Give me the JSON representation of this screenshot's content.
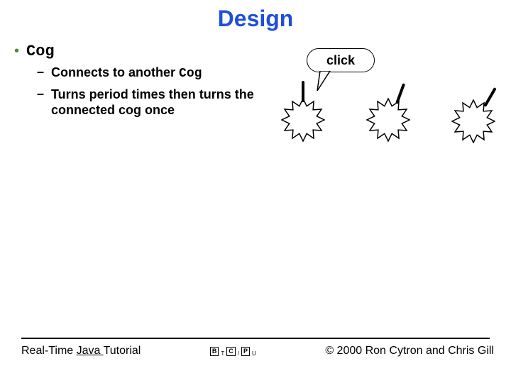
{
  "title": "Design",
  "bullets": {
    "l1": {
      "text": "Cog"
    },
    "l2a": {
      "prefix": "Connects to another ",
      "code": "Cog"
    },
    "l2b": {
      "text": "Turns period times then turns the connected cog once"
    }
  },
  "callout": {
    "label": "click"
  },
  "cogs": {
    "count": 3,
    "stroke": "#000000",
    "fill": "#ffffff",
    "outer_radius": 30,
    "inner_radius": 20,
    "teeth": 12,
    "pointer_angles_deg": [
      0,
      20,
      30
    ]
  },
  "footer": {
    "left_prefix": "Real-Time ",
    "left_underlined": "Java ",
    "left_suffix": "Tutorial",
    "logo_boxes": [
      "B",
      "C",
      "P"
    ],
    "logo_subs": [
      "T",
      "/",
      "U"
    ],
    "copyright": "© 2000 Ron Cytron and Chris Gill"
  },
  "colors": {
    "title": "#1f4fd8",
    "l1_bullet": "#4b8a3a",
    "background": "#ffffff",
    "text": "#000000"
  },
  "typography": {
    "title_fontsize_pt": 24,
    "l1_fontsize_pt": 17,
    "l2_fontsize_pt": 13,
    "footer_fontsize_pt": 12
  }
}
